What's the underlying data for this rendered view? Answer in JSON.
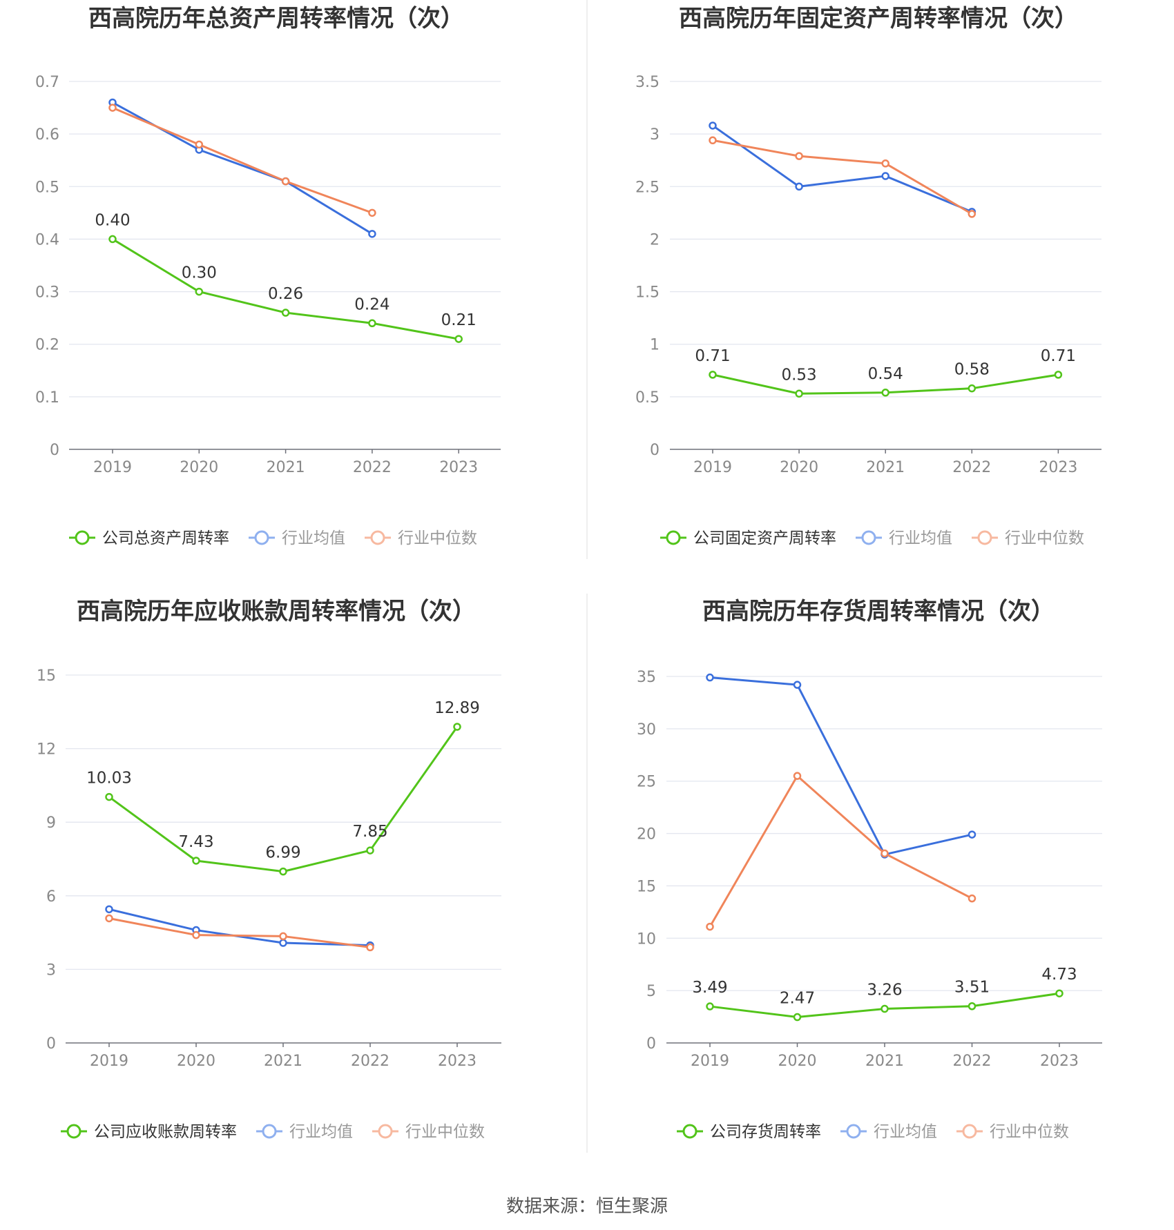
{
  "source": "数据来源：恒生聚源",
  "chart_data": [
    {
      "type": "line",
      "title": "西高院历年总资产周转率情况（次）",
      "categories": [
        "2019",
        "2020",
        "2021",
        "2022",
        "2023"
      ],
      "ylim": [
        0,
        0.7
      ],
      "yticks": [
        "0",
        "0.1",
        "0.2",
        "0.3",
        "0.4",
        "0.5",
        "0.6",
        "0.7"
      ],
      "grid": true,
      "legend_position": "bottom",
      "series": [
        {
          "name": "公司总资产周转率",
          "color": "#52c41a",
          "values": [
            0.4,
            0.3,
            0.26,
            0.24,
            0.21
          ],
          "labels": [
            "0.40",
            "0.30",
            "0.26",
            "0.24",
            "0.21"
          ]
        },
        {
          "name": "行业均值",
          "color": "#3a6fdc",
          "values": [
            0.66,
            0.57,
            0.51,
            0.41,
            null
          ]
        },
        {
          "name": "行业中位数",
          "color": "#f0855a",
          "values": [
            0.65,
            0.58,
            0.51,
            0.45,
            null
          ]
        }
      ]
    },
    {
      "type": "line",
      "title": "西高院历年固定资产周转率情况（次）",
      "categories": [
        "2019",
        "2020",
        "2021",
        "2022",
        "2023"
      ],
      "ylim": [
        0,
        3.5
      ],
      "yticks": [
        "0",
        "0.5",
        "1",
        "1.5",
        "2",
        "2.5",
        "3",
        "3.5"
      ],
      "grid": true,
      "legend_position": "bottom",
      "series": [
        {
          "name": "公司固定资产周转率",
          "color": "#52c41a",
          "values": [
            0.71,
            0.53,
            0.54,
            0.58,
            0.71
          ],
          "labels": [
            "0.71",
            "0.53",
            "0.54",
            "0.58",
            "0.71"
          ]
        },
        {
          "name": "行业均值",
          "color": "#3a6fdc",
          "values": [
            3.08,
            2.5,
            2.6,
            2.26,
            null
          ]
        },
        {
          "name": "行业中位数",
          "color": "#f0855a",
          "values": [
            2.94,
            2.79,
            2.72,
            2.24,
            null
          ]
        }
      ]
    },
    {
      "type": "line",
      "title": "西高院历年应收账款周转率情况（次）",
      "categories": [
        "2019",
        "2020",
        "2021",
        "2022",
        "2023"
      ],
      "ylim": [
        0,
        15
      ],
      "yticks": [
        "0",
        "3",
        "6",
        "9",
        "12",
        "15"
      ],
      "grid": true,
      "legend_position": "bottom",
      "series": [
        {
          "name": "公司应收账款周转率",
          "color": "#52c41a",
          "values": [
            10.03,
            7.43,
            6.99,
            7.85,
            12.89
          ],
          "labels": [
            "10.03",
            "7.43",
            "6.99",
            "7.85",
            "12.89"
          ]
        },
        {
          "name": "行业均值",
          "color": "#3a6fdc",
          "values": [
            5.45,
            4.6,
            4.08,
            3.98,
            null
          ]
        },
        {
          "name": "行业中位数",
          "color": "#f0855a",
          "values": [
            5.08,
            4.4,
            4.35,
            3.9,
            null
          ]
        }
      ]
    },
    {
      "type": "line",
      "title": "西高院历年存货周转率情况（次）",
      "categories": [
        "2019",
        "2020",
        "2021",
        "2022",
        "2023"
      ],
      "ylim": [
        0,
        35
      ],
      "yticks": [
        "0",
        "5",
        "10",
        "15",
        "20",
        "25",
        "30",
        "35"
      ],
      "grid": true,
      "legend_position": "bottom",
      "series": [
        {
          "name": "公司存货周转率",
          "color": "#52c41a",
          "values": [
            3.49,
            2.47,
            3.26,
            3.51,
            4.73
          ],
          "labels": [
            "3.49",
            "2.47",
            "3.26",
            "3.51",
            "4.73"
          ]
        },
        {
          "name": "行业均值",
          "color": "#3a6fdc",
          "values": [
            34.9,
            34.2,
            18.0,
            19.9,
            null
          ]
        },
        {
          "name": "行业中位数",
          "color": "#f0855a",
          "values": [
            11.1,
            25.5,
            18.1,
            13.8,
            null
          ]
        }
      ]
    }
  ]
}
